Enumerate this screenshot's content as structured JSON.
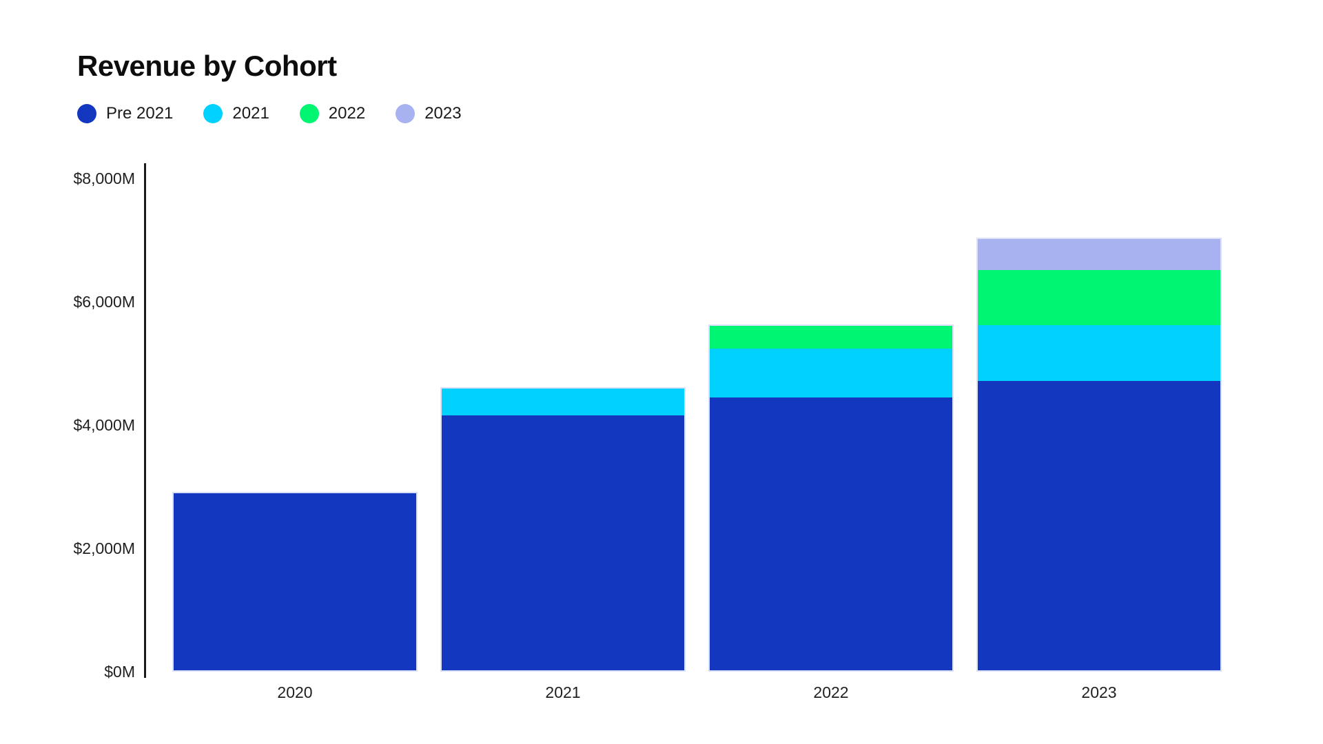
{
  "title": "Revenue by Cohort",
  "legend": {
    "items": [
      "Pre 2021",
      "2021",
      "2022",
      "2023"
    ]
  },
  "colors": {
    "pre_2021": "#1337be",
    "cohort_2021": "#00d1ff",
    "cohort_2022": "#00f573",
    "cohort_2023": "#a9b2f0",
    "axis_line": "#1a1a1a",
    "text": "#1f1f1f",
    "background": "#ffffff",
    "bar_outline": "#dbe1fb"
  },
  "chart_data": {
    "type": "bar",
    "stacked": true,
    "title": "Revenue by Cohort",
    "categories": [
      "2020",
      "2021",
      "2022",
      "2023"
    ],
    "series": [
      {
        "name": "Pre 2021",
        "color": "#1337be",
        "values": [
          2920,
          4180,
          4460,
          4720
        ]
      },
      {
        "name": "2021",
        "color": "#00d1ff",
        "values": [
          0,
          440,
          800,
          910
        ]
      },
      {
        "name": "2022",
        "color": "#00f573",
        "values": [
          0,
          0,
          375,
          905
        ]
      },
      {
        "name": "2023",
        "color": "#a9b2f0",
        "values": [
          0,
          0,
          0,
          505
        ]
      }
    ],
    "totals": [
      2920,
      4620,
      5635,
      7040
    ],
    "xlabel": "",
    "ylabel": "",
    "ylim": [
      0,
      8000
    ],
    "y_ticks": [
      {
        "value": 0,
        "label": "$0M"
      },
      {
        "value": 2000,
        "label": "$2,000M"
      },
      {
        "value": 4000,
        "label": "$4,000M"
      },
      {
        "value": 6000,
        "label": "$6,000M"
      },
      {
        "value": 8000,
        "label": "$8,000M"
      }
    ],
    "grid": false,
    "legend_position": "top-left"
  }
}
